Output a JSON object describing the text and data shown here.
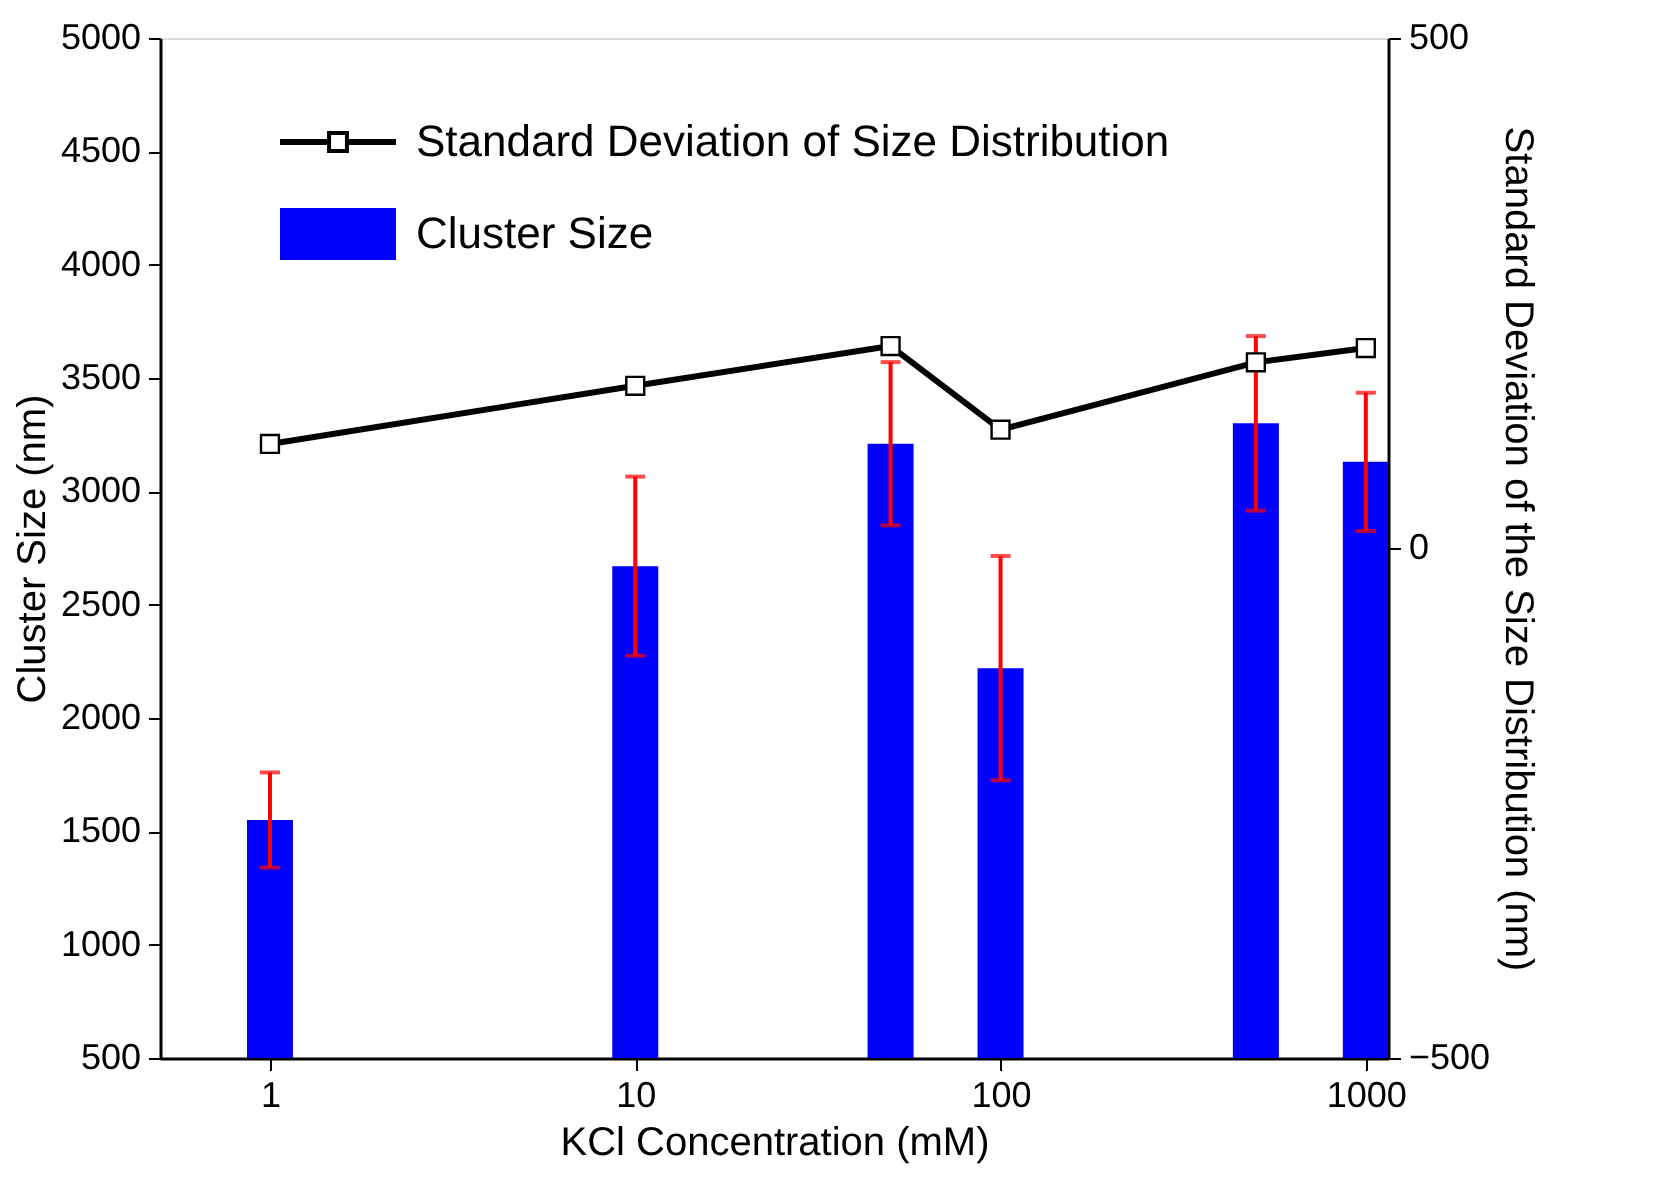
{
  "chart_data": {
    "type": "bar",
    "xlabel": "KCl Concentration (mM)",
    "ylabel": "Cluster Size (nm)",
    "y2label": "Standard Deviation of the Size Distribution (nm)",
    "x": [
      1,
      10,
      50,
      100,
      500,
      1000
    ],
    "series": [
      {
        "name": "Cluster Size",
        "color": "#0000ff",
        "values": [
          1550,
          2670,
          3210,
          2220,
          3300,
          3130
        ],
        "errors": [
          210,
          395,
          360,
          495,
          385,
          305
        ]
      },
      {
        "name": "Standard Deviation of Size Distribution",
        "type": "line",
        "axis": "y2",
        "color": "#000000",
        "marker": "square",
        "line_style": "solid",
        "values": [
          102,
          159,
          198,
          116,
          182,
          196
        ]
      }
    ],
    "log": "x",
    "xlim": [
      0.5,
      1150
    ],
    "xticks": [
      1,
      10,
      100,
      1000
    ],
    "ylim": [
      500,
      5000
    ],
    "yticks": [
      500,
      1000,
      1500,
      2000,
      2500,
      3000,
      3500,
      4000,
      4500,
      5000
    ],
    "y2lim": [
      -500,
      500
    ],
    "y2ticks": [
      -500,
      0,
      500
    ],
    "grid": false,
    "legend": "top left"
  }
}
